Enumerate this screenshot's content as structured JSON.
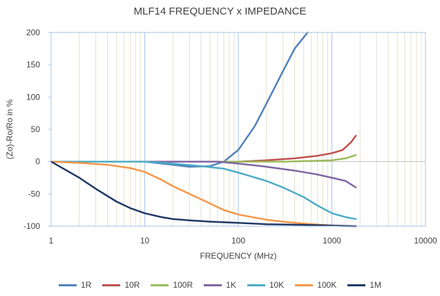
{
  "chart_data": {
    "type": "line",
    "title": "MLF14 FREQUENCY x IMPEDANCE",
    "xlabel": "FREQUENCY (MHz)",
    "ylabel": "(Zo)-Ro/Ro in %",
    "xscale": "log",
    "xlim": [
      1,
      10000
    ],
    "ylim": [
      -100,
      200
    ],
    "x_ticks": [
      "1",
      "10",
      "100",
      "1000",
      "10000"
    ],
    "y_ticks": [
      "200",
      "150",
      "100",
      "50",
      "0",
      "-50",
      "-100"
    ],
    "grid": "vertical minor lines",
    "legend_position": "bottom",
    "series": [
      {
        "name": "1R",
        "color": "#4f81bd",
        "x": [
          1,
          10,
          20,
          30,
          50,
          70,
          100,
          150,
          200,
          300,
          400,
          550
        ],
        "y": [
          0,
          0,
          -5,
          -8,
          -7,
          0,
          18,
          55,
          90,
          140,
          175,
          200
        ]
      },
      {
        "name": "10R",
        "color": "#c0504d",
        "x": [
          1,
          10,
          30,
          70,
          100,
          200,
          400,
          700,
          1000,
          1300,
          1600,
          1800
        ],
        "y": [
          0,
          0,
          0,
          0,
          0,
          2,
          5,
          9,
          13,
          18,
          30,
          40
        ]
      },
      {
        "name": "100R",
        "color": "#9bbb59",
        "x": [
          1,
          10,
          50,
          100,
          300,
          600,
          1000,
          1400,
          1800
        ],
        "y": [
          0,
          0,
          0,
          0,
          0,
          1,
          2,
          5,
          10
        ]
      },
      {
        "name": "1K",
        "color": "#8064a2",
        "x": [
          1,
          10,
          30,
          60,
          100,
          200,
          400,
          700,
          1000,
          1400,
          1800
        ],
        "y": [
          0,
          0,
          0,
          0,
          -3,
          -8,
          -14,
          -20,
          -25,
          -30,
          -40
        ]
      },
      {
        "name": "10K",
        "color": "#4bacc6",
        "x": [
          1,
          10,
          20,
          40,
          70,
          100,
          200,
          300,
          500,
          700,
          1000,
          1400,
          1800
        ],
        "y": [
          0,
          0,
          -3,
          -7,
          -11,
          -17,
          -30,
          -40,
          -55,
          -68,
          -80,
          -86,
          -89
        ]
      },
      {
        "name": "100K",
        "color": "#f79646",
        "x": [
          1,
          2,
          4,
          7,
          10,
          15,
          20,
          30,
          50,
          70,
          100,
          200,
          300,
          500,
          1000,
          1800
        ],
        "y": [
          0,
          -2,
          -5,
          -10,
          -16,
          -28,
          -38,
          -50,
          -65,
          -75,
          -82,
          -90,
          -93,
          -96,
          -99,
          -100
        ]
      },
      {
        "name": "1M",
        "color": "#1f3864",
        "x": [
          1,
          2,
          3,
          5,
          7,
          10,
          15,
          20,
          30,
          50,
          100,
          200,
          500,
          1000,
          1800
        ],
        "y": [
          0,
          -25,
          -42,
          -62,
          -72,
          -80,
          -86,
          -89,
          -91,
          -93,
          -95,
          -97,
          -98,
          -99,
          -100
        ]
      }
    ]
  },
  "colors": {
    "plot_border": "#a6c3e8",
    "minor_grid": "#e6e0c8",
    "axis_text": "#404040"
  }
}
